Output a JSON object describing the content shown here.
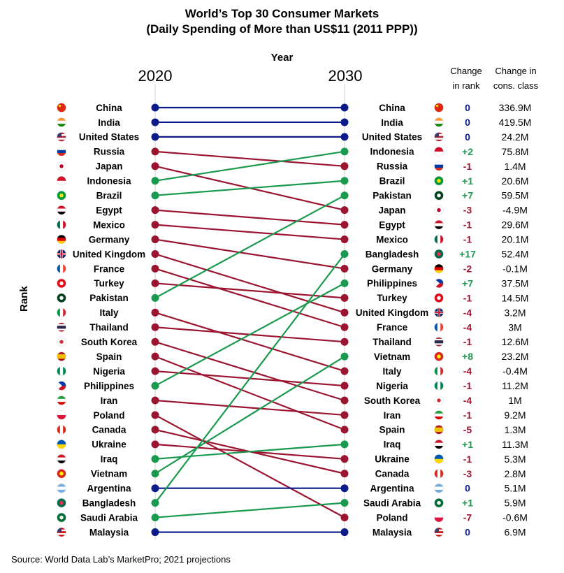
{
  "title_line1": "World’s Top 30 Consumer Markets",
  "title_line2": "(Daily Spending of More than US$11 (2011 PPP))",
  "source": "Source: World Data Lab’s MarketPro; 2021 projections",
  "colors": {
    "down": "#9b1530",
    "up": "#1a9a4f",
    "same": "#0b1c8a"
  },
  "chart_data": {
    "type": "slope",
    "axis_title": "Year",
    "y_axis_title": "Rank",
    "x": [
      "2020",
      "2030"
    ],
    "col_change_rank": [
      "Change",
      "in rank"
    ],
    "col_change_class": [
      "Change in",
      "cons. class"
    ],
    "ranks_2020": [
      "China",
      "India",
      "United States",
      "Russia",
      "Japan",
      "Indonesia",
      "Brazil",
      "Egypt",
      "Mexico",
      "Germany",
      "United Kingdom",
      "France",
      "Turkey",
      "Pakistan",
      "Italy",
      "Thailand",
      "South Korea",
      "Spain",
      "Nigeria",
      "Philippines",
      "Iran",
      "Poland",
      "Canada",
      "Ukraine",
      "Iraq",
      "Vietnam",
      "Argentina",
      "Bangladesh",
      "Saudi Arabia",
      "Malaysia"
    ],
    "ranks_2030": [
      "China",
      "India",
      "United States",
      "Indonesia",
      "Russia",
      "Brazil",
      "Pakistan",
      "Japan",
      "Egypt",
      "Mexico",
      "Bangladesh",
      "Germany",
      "Philippines",
      "Turkey",
      "United Kingdom",
      "France",
      "Thailand",
      "Vietnam",
      "Italy",
      "Nigeria",
      "South Korea",
      "Iran",
      "Spain",
      "Iraq",
      "Ukraine",
      "Canada",
      "Argentina",
      "Saudi Arabia",
      "Poland",
      "Malaysia"
    ],
    "rank_change_2030": [
      "0",
      "0",
      "0",
      "+2",
      "-1",
      "+1",
      "+7",
      "-3",
      "-1",
      "-1",
      "+17",
      "-2",
      "+7",
      "-1",
      "-4",
      "-4",
      "-1",
      "+8",
      "-4",
      "-1",
      "-4",
      "-1",
      "-5",
      "+1",
      "-1",
      "-3",
      "0",
      "+1",
      "-7",
      "0"
    ],
    "consumer_class_change_2030": [
      "336.9M",
      "419.5M",
      "24.2M",
      "75.8M",
      "1.4M",
      "20.6M",
      "59.5M",
      "-4.9M",
      "29.6M",
      "20.1M",
      "52.4M",
      "-0.1M",
      "37.5M",
      "14.5M",
      "3.2M",
      "3M",
      "12.6M",
      "23.2M",
      "-0.4M",
      "11.2M",
      "1M",
      "9.2M",
      "1.3M",
      "11.3M",
      "5.3M",
      "2.8M",
      "5.1M",
      "5.9M",
      "-0.6M",
      "6.9M"
    ]
  }
}
